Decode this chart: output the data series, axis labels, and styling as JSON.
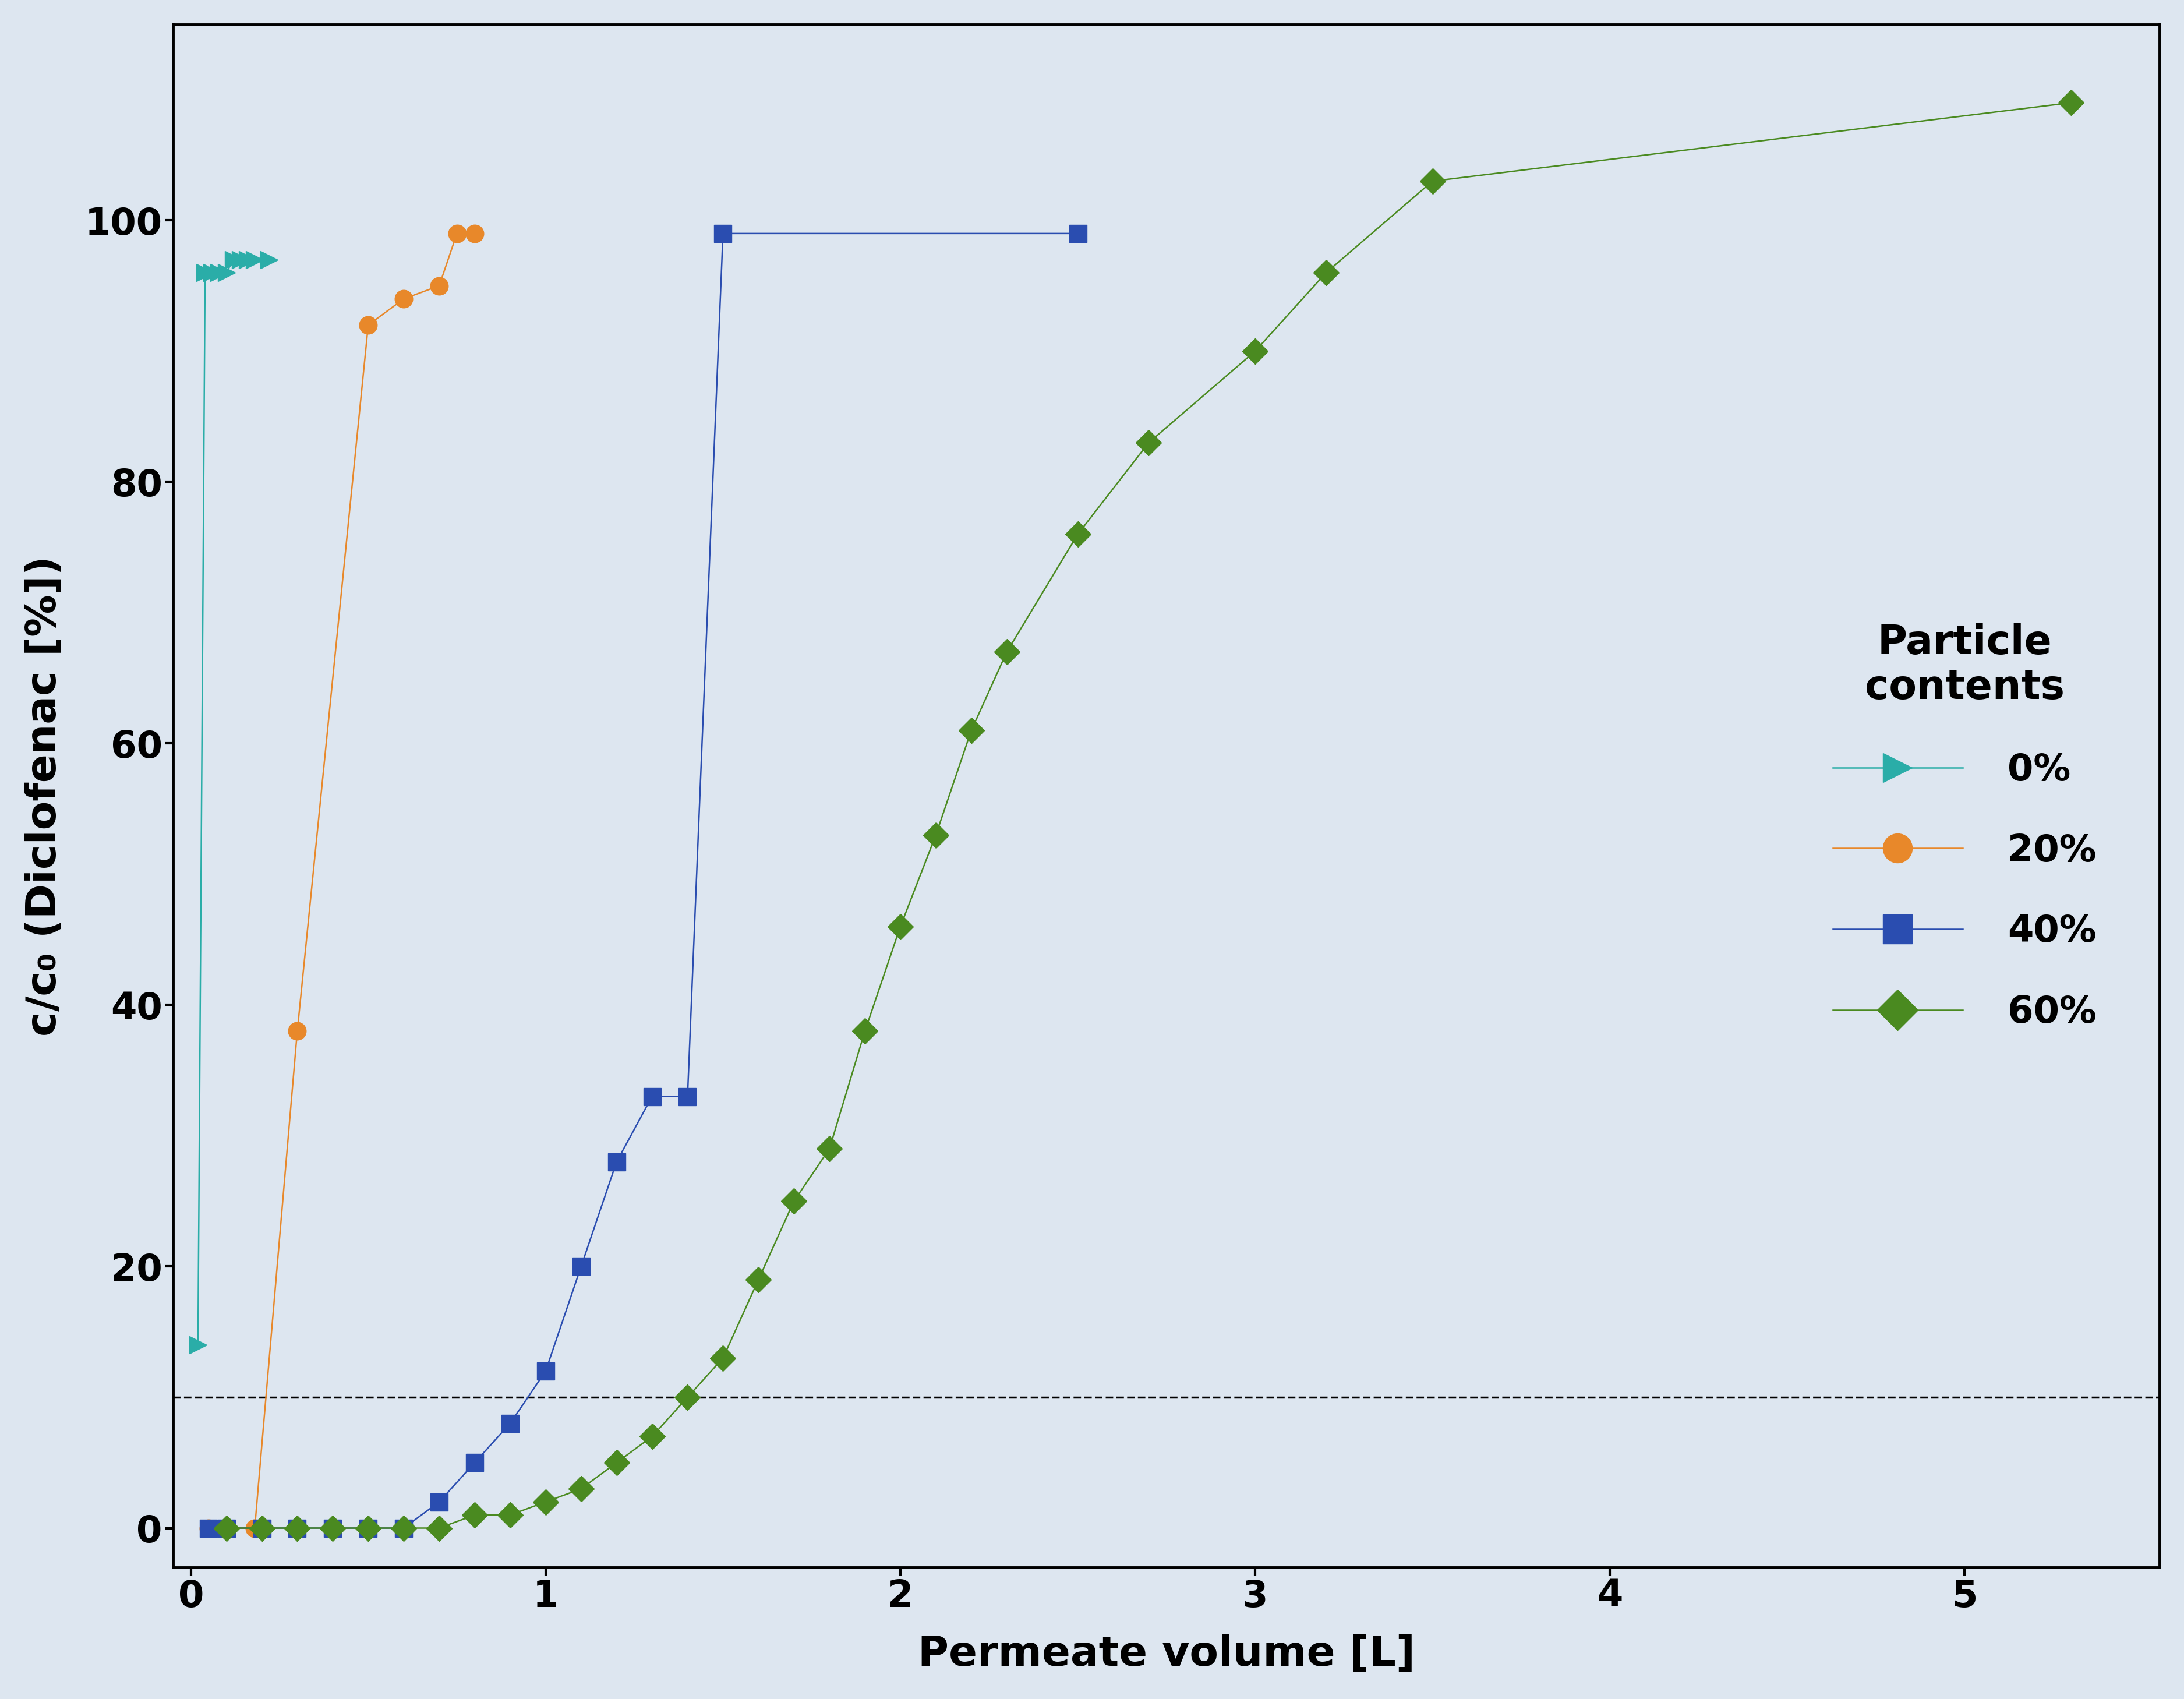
{
  "background_color": "#dde6f0",
  "plot_background": "#dde6f0",
  "series": {
    "0pct": {
      "label": "0%",
      "color": "#2aada8",
      "marker": ">",
      "linestyle": "-",
      "linewidth": 1.8,
      "x": [
        0.02,
        0.04,
        0.06,
        0.08,
        0.1,
        0.12,
        0.14,
        0.16,
        0.18,
        0.22
      ],
      "y": [
        14,
        96,
        96,
        96,
        96,
        97,
        97,
        97,
        97,
        97
      ]
    },
    "20pct": {
      "label": "20%",
      "color": "#e8882a",
      "marker": "o",
      "linestyle": "-",
      "linewidth": 1.8,
      "x": [
        0.05,
        0.1,
        0.18,
        0.3,
        0.5,
        0.6,
        0.7,
        0.75,
        0.8
      ],
      "y": [
        0,
        0,
        0,
        38,
        92,
        94,
        95,
        99,
        99
      ]
    },
    "40pct": {
      "label": "40%",
      "color": "#2a4db0",
      "marker": "s",
      "linestyle": "-",
      "linewidth": 1.8,
      "x": [
        0.05,
        0.1,
        0.2,
        0.3,
        0.4,
        0.5,
        0.6,
        0.7,
        0.8,
        0.9,
        1.0,
        1.1,
        1.2,
        1.3,
        1.4,
        1.5,
        2.5
      ],
      "y": [
        0,
        0,
        0,
        0,
        0,
        0,
        0,
        2,
        5,
        8,
        12,
        20,
        28,
        33,
        33,
        99,
        99
      ]
    },
    "60pct": {
      "label": "60%",
      "color": "#4a8a20",
      "marker": "D",
      "linestyle": "-",
      "linewidth": 1.8,
      "x": [
        0.1,
        0.2,
        0.3,
        0.4,
        0.5,
        0.6,
        0.7,
        0.8,
        0.9,
        1.0,
        1.1,
        1.2,
        1.3,
        1.4,
        1.5,
        1.6,
        1.7,
        1.8,
        1.9,
        2.0,
        2.1,
        2.2,
        2.3,
        2.5,
        2.7,
        3.0,
        3.2,
        3.5,
        5.3
      ],
      "y": [
        0,
        0,
        0,
        0,
        0,
        0,
        0,
        1,
        1,
        2,
        3,
        5,
        7,
        10,
        13,
        19,
        25,
        29,
        38,
        46,
        53,
        61,
        67,
        76,
        83,
        90,
        96,
        103,
        109
      ]
    }
  },
  "dashed_line_y": 10,
  "xlim": [
    -0.05,
    5.55
  ],
  "ylim": [
    -3,
    115
  ],
  "xticks": [
    0,
    1,
    2,
    3,
    4,
    5
  ],
  "yticks": [
    0,
    20,
    40,
    60,
    80,
    100
  ],
  "xlabel": "Permeate volume [L]",
  "ylabel": "c/c₀ (Diclofenac [%])",
  "legend_title": "Particle\ncontents",
  "axis_label_fontsize": 52,
  "tick_fontsize": 46,
  "legend_fontsize": 46,
  "legend_title_fontsize": 50,
  "marker_size": 22,
  "dashed_linewidth": 2.5
}
